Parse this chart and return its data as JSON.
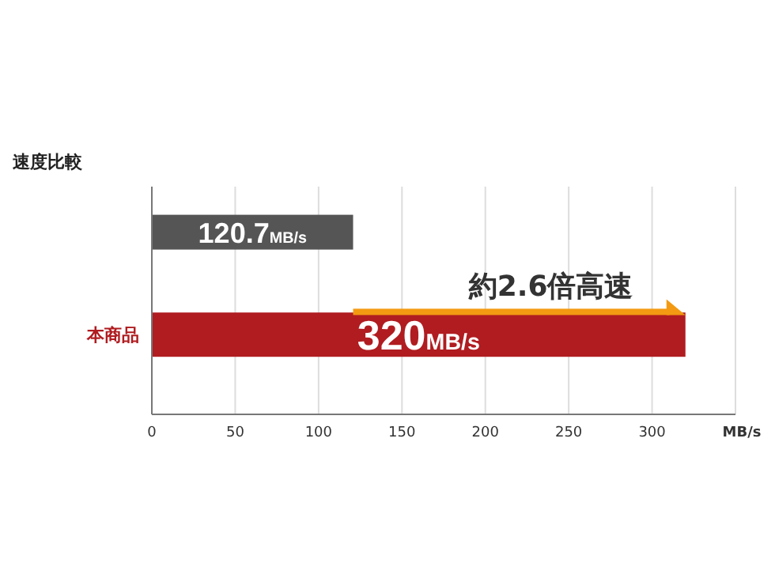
{
  "chart_data": {
    "type": "bar",
    "orientation": "horizontal",
    "title": "速度比較",
    "categories": [
      null,
      "本商品"
    ],
    "values": [
      120.7,
      320
    ],
    "colors": [
      "#555555",
      "#b01c20"
    ],
    "value_labels": [
      "120.7MB/s",
      "320MB/s"
    ],
    "xlabel": "MB/s",
    "xlim": [
      0,
      350
    ],
    "xticks": [
      0,
      50,
      100,
      150,
      200,
      250,
      300,
      {
        "value": 350,
        "label": null
      }
    ],
    "grid": "x",
    "annotations": [
      "約2.6倍高速"
    ]
  }
}
